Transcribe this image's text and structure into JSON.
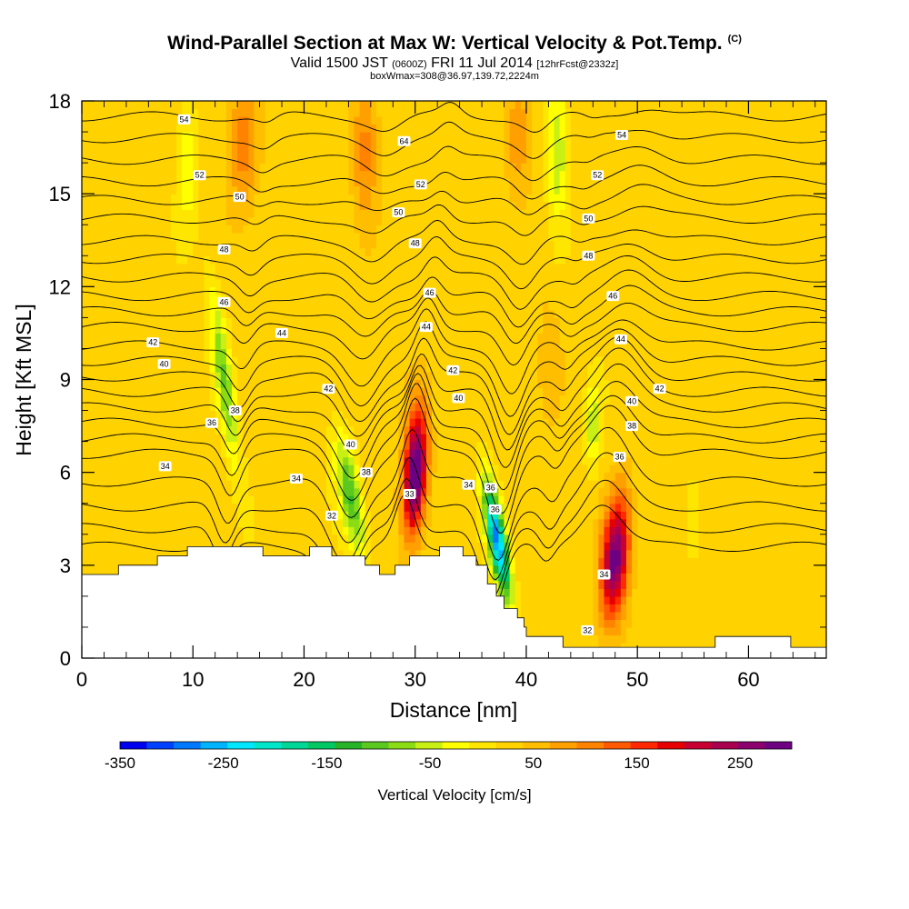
{
  "header": {
    "title": "Wind-Parallel Section at Max W: Vertical Velocity & Pot.Temp.",
    "copyright": "(C)",
    "valid_prefix": "Valid 1500 JST",
    "valid_utc": "(0600Z)",
    "valid_date": "FRI 11 Jul 2014",
    "forecast": "[12hrFcst@2332z]",
    "box_info": "boxWmax=308@36.97,139.72,2224m"
  },
  "chart_data": {
    "type": "heatmap",
    "xlabel": "Distance [nm]",
    "ylabel": "Height [Kft MSL]",
    "xlim": [
      0,
      67
    ],
    "ylim": [
      0,
      18
    ],
    "xticks": [
      "0",
      "10",
      "20",
      "30",
      "40",
      "50",
      "60"
    ],
    "yticks": [
      "0",
      "3",
      "6",
      "9",
      "12",
      "15",
      "18"
    ],
    "colorbar": {
      "title": "Vertical Velocity [cm/s]",
      "range": [
        -350,
        300
      ],
      "tick_labels": [
        "-350",
        "-250",
        "-150",
        "-50",
        "50",
        "150",
        "250"
      ],
      "colors": [
        "#0000f0",
        "#0040ff",
        "#0078ff",
        "#00b4ff",
        "#00e6ff",
        "#00e6c8",
        "#00d796",
        "#00c864",
        "#28b428",
        "#5ac81e",
        "#8cdc14",
        "#c8f014",
        "#ffff00",
        "#ffe600",
        "#ffd200",
        "#ffbe00",
        "#ffa000",
        "#ff8200",
        "#ff5a00",
        "#ff2800",
        "#e60000",
        "#c80032",
        "#aa0050",
        "#8c006e",
        "#6e0082"
      ]
    },
    "terrain_kft": [
      [
        0,
        2.7
      ],
      [
        3.3,
        2.7
      ],
      [
        3.3,
        3.0
      ],
      [
        6.8,
        3.0
      ],
      [
        6.8,
        3.3
      ],
      [
        9.5,
        3.3
      ],
      [
        9.5,
        3.6
      ],
      [
        16.3,
        3.6
      ],
      [
        16.3,
        3.3
      ],
      [
        20.5,
        3.3
      ],
      [
        20.5,
        3.6
      ],
      [
        22.5,
        3.6
      ],
      [
        22.5,
        3.3
      ],
      [
        25.5,
        3.3
      ],
      [
        25.5,
        3.0
      ],
      [
        26.8,
        3.0
      ],
      [
        26.8,
        2.7
      ],
      [
        28.2,
        2.7
      ],
      [
        28.2,
        3.0
      ],
      [
        29.5,
        3.0
      ],
      [
        29.5,
        3.3
      ],
      [
        32.2,
        3.3
      ],
      [
        32.2,
        3.6
      ],
      [
        34.3,
        3.6
      ],
      [
        34.3,
        3.3
      ],
      [
        35.5,
        3.3
      ],
      [
        35.5,
        3.0
      ],
      [
        36.5,
        3.0
      ],
      [
        36.5,
        2.4
      ],
      [
        37.3,
        2.4
      ],
      [
        37.3,
        2.0
      ],
      [
        38.0,
        2.0
      ],
      [
        38.0,
        1.6
      ],
      [
        39.2,
        1.6
      ],
      [
        39.2,
        1.3
      ],
      [
        39.8,
        1.3
      ],
      [
        39.8,
        1.0
      ],
      [
        40.0,
        1.0
      ],
      [
        40.0,
        0.7
      ],
      [
        43.3,
        0.7
      ],
      [
        43.3,
        0.35
      ],
      [
        57.0,
        0.35
      ],
      [
        57.0,
        0.7
      ],
      [
        63.8,
        0.7
      ],
      [
        63.8,
        0.35
      ],
      [
        67,
        0.35
      ]
    ],
    "updraft_cells": [
      {
        "x": 14.5,
        "y": 16.5,
        "w": 80,
        "sx": 1.3,
        "sy": 2.2,
        "tilt": 0.0
      },
      {
        "x": 25.5,
        "y": 16.5,
        "w": 80,
        "sx": 1.2,
        "sy": 2.2,
        "tilt": 0.0
      },
      {
        "x": 39.3,
        "y": 17.0,
        "w": 70,
        "sx": 1.1,
        "sy": 1.8,
        "tilt": 0.0
      },
      {
        "x": 30.0,
        "y": 6.0,
        "w": 300,
        "sx": 1.0,
        "sy": 2.0,
        "tilt": -0.15
      },
      {
        "x": 48.0,
        "y": 3.2,
        "w": 260,
        "sx": 1.2,
        "sy": 2.0,
        "tilt": -0.2
      },
      {
        "x": 42.0,
        "y": 9.5,
        "w": 40,
        "sx": 1.0,
        "sy": 2.0,
        "tilt": 0.0
      }
    ],
    "downdraft_cells": [
      {
        "x": 12.8,
        "y": 9.0,
        "w": -110,
        "sx": 0.8,
        "sy": 3.0,
        "tilt": 0.35
      },
      {
        "x": 24.2,
        "y": 5.2,
        "w": -140,
        "sx": 1.0,
        "sy": 2.0,
        "tilt": 0.45
      },
      {
        "x": 37.4,
        "y": 3.8,
        "w": -300,
        "sx": 0.8,
        "sy": 1.8,
        "tilt": 0.45
      },
      {
        "x": 9.5,
        "y": 16.0,
        "w": -60,
        "sx": 0.9,
        "sy": 2.0,
        "tilt": 0.0
      },
      {
        "x": 42.8,
        "y": 16.5,
        "w": -90,
        "sx": 0.9,
        "sy": 2.2,
        "tilt": 0.0
      },
      {
        "x": 46.0,
        "y": 7.5,
        "w": -80,
        "sx": 0.7,
        "sy": 1.4,
        "tilt": 0.0
      },
      {
        "x": 55.0,
        "y": 4.5,
        "w": -40,
        "sx": 0.6,
        "sy": 1.4,
        "tilt": 0.0
      }
    ],
    "isentropes": [
      {
        "level": 32,
        "y": 3.6
      },
      {
        "level": 33,
        "y": 4.2
      },
      {
        "level": 34,
        "y": 4.9
      },
      {
        "level": 35,
        "y": 5.7
      },
      {
        "level": 36,
        "y": 6.6
      },
      {
        "level": 37,
        "y": 7.1
      },
      {
        "level": 38,
        "y": 7.6
      },
      {
        "level": 39,
        "y": 8.1
      },
      {
        "level": 40,
        "y": 8.6
      },
      {
        "level": 41,
        "y": 9.1
      },
      {
        "level": 42,
        "y": 9.6
      },
      {
        "level": 43,
        "y": 10.1
      },
      {
        "level": 44,
        "y": 10.7
      },
      {
        "level": 45,
        "y": 11.2
      },
      {
        "level": 46,
        "y": 11.7
      },
      {
        "level": 47,
        "y": 12.3
      },
      {
        "level": 48,
        "y": 12.9
      },
      {
        "level": 49,
        "y": 13.5
      },
      {
        "level": 50,
        "y": 14.2
      },
      {
        "level": 51,
        "y": 14.8
      },
      {
        "level": 52,
        "y": 15.4
      },
      {
        "level": 53,
        "y": 16.1
      },
      {
        "level": 54,
        "y": 16.8
      },
      {
        "level": 55,
        "y": 17.5
      }
    ],
    "contour_labels": [
      {
        "text": "54",
        "x": 9.2,
        "y": 17.4
      },
      {
        "text": "64",
        "x": 29.0,
        "y": 16.7
      },
      {
        "text": "54",
        "x": 48.6,
        "y": 16.9
      },
      {
        "text": "52",
        "x": 10.6,
        "y": 15.6
      },
      {
        "text": "52",
        "x": 30.5,
        "y": 15.3
      },
      {
        "text": "52",
        "x": 46.4,
        "y": 15.6
      },
      {
        "text": "50",
        "x": 14.2,
        "y": 14.9
      },
      {
        "text": "50",
        "x": 28.5,
        "y": 14.4
      },
      {
        "text": "50",
        "x": 45.6,
        "y": 14.2
      },
      {
        "text": "48",
        "x": 12.8,
        "y": 13.2
      },
      {
        "text": "48",
        "x": 30.0,
        "y": 13.4
      },
      {
        "text": "48",
        "x": 45.6,
        "y": 13.0
      },
      {
        "text": "46",
        "x": 12.8,
        "y": 11.5
      },
      {
        "text": "46",
        "x": 31.3,
        "y": 11.8
      },
      {
        "text": "46",
        "x": 47.8,
        "y": 11.7
      },
      {
        "text": "44",
        "x": 18.0,
        "y": 10.5
      },
      {
        "text": "44",
        "x": 31.0,
        "y": 10.7
      },
      {
        "text": "44",
        "x": 48.5,
        "y": 10.3
      },
      {
        "text": "42",
        "x": 6.4,
        "y": 10.2
      },
      {
        "text": "42",
        "x": 22.2,
        "y": 8.7
      },
      {
        "text": "42",
        "x": 33.4,
        "y": 9.3
      },
      {
        "text": "42",
        "x": 52.0,
        "y": 8.7
      },
      {
        "text": "40",
        "x": 7.4,
        "y": 9.5
      },
      {
        "text": "40",
        "x": 24.2,
        "y": 6.9
      },
      {
        "text": "40",
        "x": 33.9,
        "y": 8.4
      },
      {
        "text": "40",
        "x": 49.5,
        "y": 8.3
      },
      {
        "text": "38",
        "x": 13.8,
        "y": 8.0
      },
      {
        "text": "38",
        "x": 25.6,
        "y": 6.0
      },
      {
        "text": "38",
        "x": 49.5,
        "y": 7.5
      },
      {
        "text": "36",
        "x": 11.7,
        "y": 7.6
      },
      {
        "text": "36",
        "x": 36.8,
        "y": 5.5
      },
      {
        "text": "36",
        "x": 37.2,
        "y": 4.8
      },
      {
        "text": "36",
        "x": 48.4,
        "y": 6.5
      },
      {
        "text": "34",
        "x": 7.5,
        "y": 6.2
      },
      {
        "text": "34",
        "x": 19.3,
        "y": 5.8
      },
      {
        "text": "34",
        "x": 34.8,
        "y": 5.6
      },
      {
        "text": "34",
        "x": 47.0,
        "y": 2.7
      },
      {
        "text": "33",
        "x": 29.5,
        "y": 5.3
      },
      {
        "text": "32",
        "x": 22.5,
        "y": 4.6
      },
      {
        "text": "32",
        "x": 45.5,
        "y": 0.9
      }
    ]
  }
}
